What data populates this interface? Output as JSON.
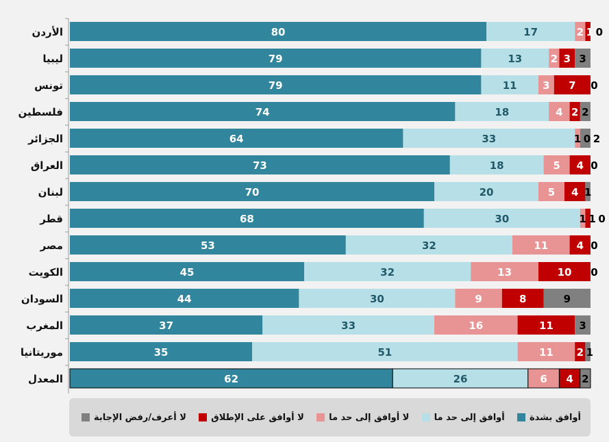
{
  "chart_data": {
    "type": "bar",
    "orientation": "horizontal",
    "stacked": true,
    "percent": true,
    "xlim": [
      0,
      100
    ],
    "categories": [
      "الأردن",
      "ليبيا",
      "تونس",
      "فلسطين",
      "الجزائر",
      "العراق",
      "لبنان",
      "قطر",
      "مصر",
      "الكويت",
      "السودان",
      "المغرب",
      "موريتانيا",
      "المعدل"
    ],
    "series": [
      {
        "name": "أوافق بشدة",
        "color": "#31859c",
        "values": [
          80,
          79,
          79,
          74,
          64,
          73,
          70,
          68,
          53,
          45,
          44,
          37,
          35,
          62
        ]
      },
      {
        "name": "أوافق إلى حد ما",
        "color": "#b7dfe8",
        "values": [
          17,
          13,
          11,
          18,
          33,
          18,
          20,
          30,
          32,
          32,
          30,
          33,
          51,
          26
        ]
      },
      {
        "name": "لا أوافق إلى حد ما",
        "color": "#e99494",
        "values": [
          2,
          2,
          3,
          4,
          1,
          5,
          5,
          1,
          11,
          13,
          9,
          16,
          11,
          6
        ]
      },
      {
        "name": "لا أوافق على الإطلاق",
        "color": "#c00000",
        "values": [
          1,
          3,
          7,
          2,
          0,
          4,
          4,
          1,
          4,
          10,
          8,
          11,
          2,
          4
        ]
      },
      {
        "name": "لا أعرف/رفض الإجابة",
        "color": "#808080",
        "values": [
          0,
          3,
          0,
          2,
          2,
          0,
          1,
          0,
          0,
          0,
          9,
          3,
          1,
          2
        ]
      }
    ],
    "legend_position": "bottom",
    "grid": false
  }
}
